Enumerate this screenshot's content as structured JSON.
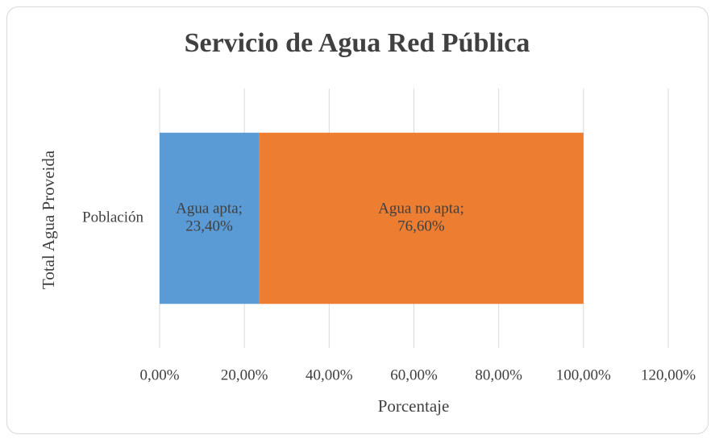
{
  "chart_data": {
    "type": "stacked_barh",
    "title": "Servicio de Agua Red Pública",
    "xlabel": "Porcentaje",
    "ylabel": "Total Agua Proveida",
    "categories": [
      "Población"
    ],
    "series": [
      {
        "name": "Agua apta",
        "color": "#5b9bd5",
        "values": [
          23.4
        ],
        "value_labels": [
          "Agua apta; 23,40%"
        ]
      },
      {
        "name": "Agua no apta",
        "color": "#ed7d31",
        "values": [
          76.6
        ],
        "value_labels": [
          "Agua no apta; 76,60%"
        ]
      }
    ],
    "xlim": [
      0,
      120
    ],
    "xticks": [
      {
        "value": 0,
        "label": "0,00%"
      },
      {
        "value": 20,
        "label": "20,00%"
      },
      {
        "value": 40,
        "label": "40,00%"
      },
      {
        "value": 60,
        "label": "60,00%"
      },
      {
        "value": 80,
        "label": "80,00%"
      },
      {
        "value": 100,
        "label": "100,00%"
      },
      {
        "value": 120,
        "label": "120,00%"
      }
    ],
    "grid": true
  }
}
